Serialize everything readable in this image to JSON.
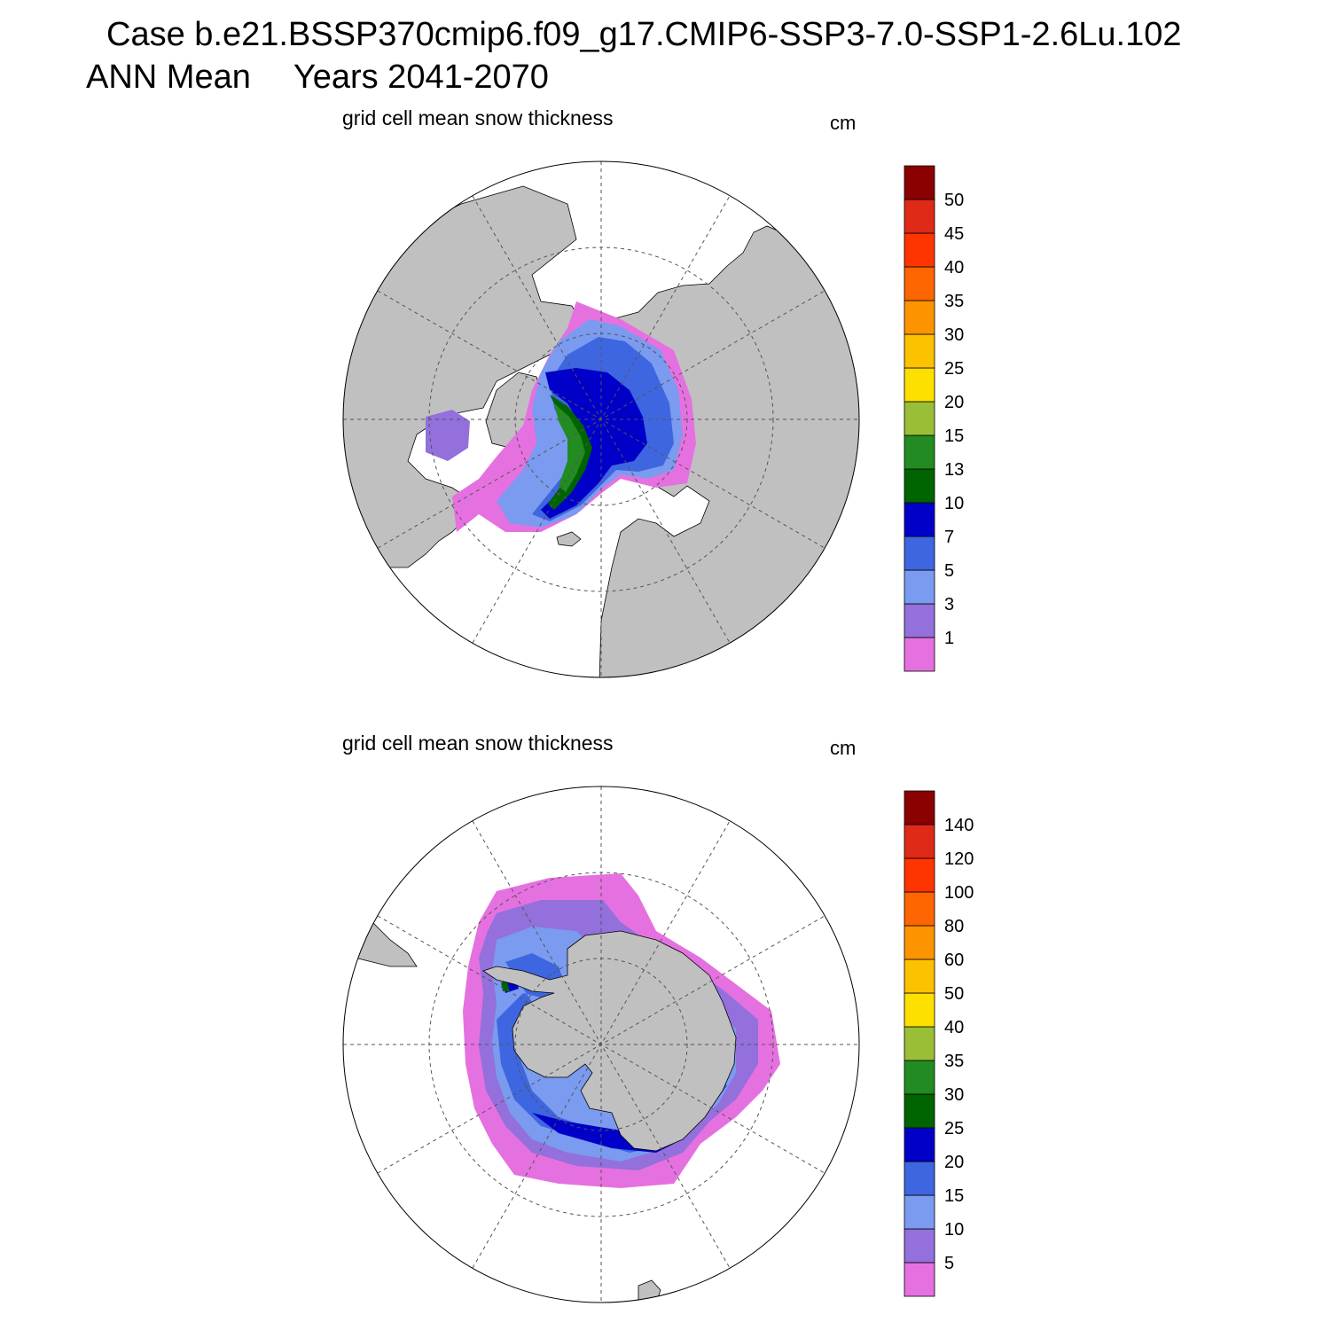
{
  "header": {
    "case_line": "Case b.e21.BSSP370cmip6.f09_g17.CMIP6-SSP3-7.0-SSP1-2.6Lu.102",
    "season": "ANN Mean",
    "years": "Years 2041-2070"
  },
  "colors": {
    "land": "#c0c0c0",
    "ocean": "#ffffff",
    "grid": "#555555"
  },
  "chart_data": [
    {
      "type": "heatmap",
      "projection": "north polar stereographic",
      "title": "grid cell mean snow thickness",
      "units": "cm",
      "colorbar": {
        "levels": [
          1,
          3,
          5,
          7,
          10,
          13,
          15,
          20,
          25,
          30,
          35,
          40,
          45,
          50
        ],
        "labels": [
          "1",
          "3",
          "5",
          "7",
          "10",
          "13",
          "15",
          "20",
          "25",
          "30",
          "35",
          "40",
          "45",
          "50"
        ],
        "colors": [
          "#e571e0",
          "#9370db",
          "#7a9bef",
          "#3e66e0",
          "#0000c8",
          "#006400",
          "#228b22",
          "#9abf36",
          "#fde000",
          "#fcc200",
          "#fc9400",
          "#fd6502",
          "#fe3500",
          "#de2a17",
          "#8b0000"
        ]
      }
    },
    {
      "type": "heatmap",
      "projection": "south polar stereographic",
      "title": "grid cell mean snow thickness",
      "units": "cm",
      "colorbar": {
        "levels": [
          5,
          10,
          15,
          20,
          25,
          30,
          35,
          40,
          50,
          60,
          80,
          100,
          120,
          140
        ],
        "labels": [
          "5",
          "10",
          "15",
          "20",
          "25",
          "30",
          "35",
          "40",
          "50",
          "60",
          "80",
          "100",
          "120",
          "140"
        ],
        "colors": [
          "#e571e0",
          "#9370db",
          "#7a9bef",
          "#3e66e0",
          "#0000c8",
          "#006400",
          "#228b22",
          "#9abf36",
          "#fde000",
          "#fcc200",
          "#fc9400",
          "#fd6502",
          "#fe3500",
          "#de2a17",
          "#8b0000"
        ]
      }
    }
  ]
}
